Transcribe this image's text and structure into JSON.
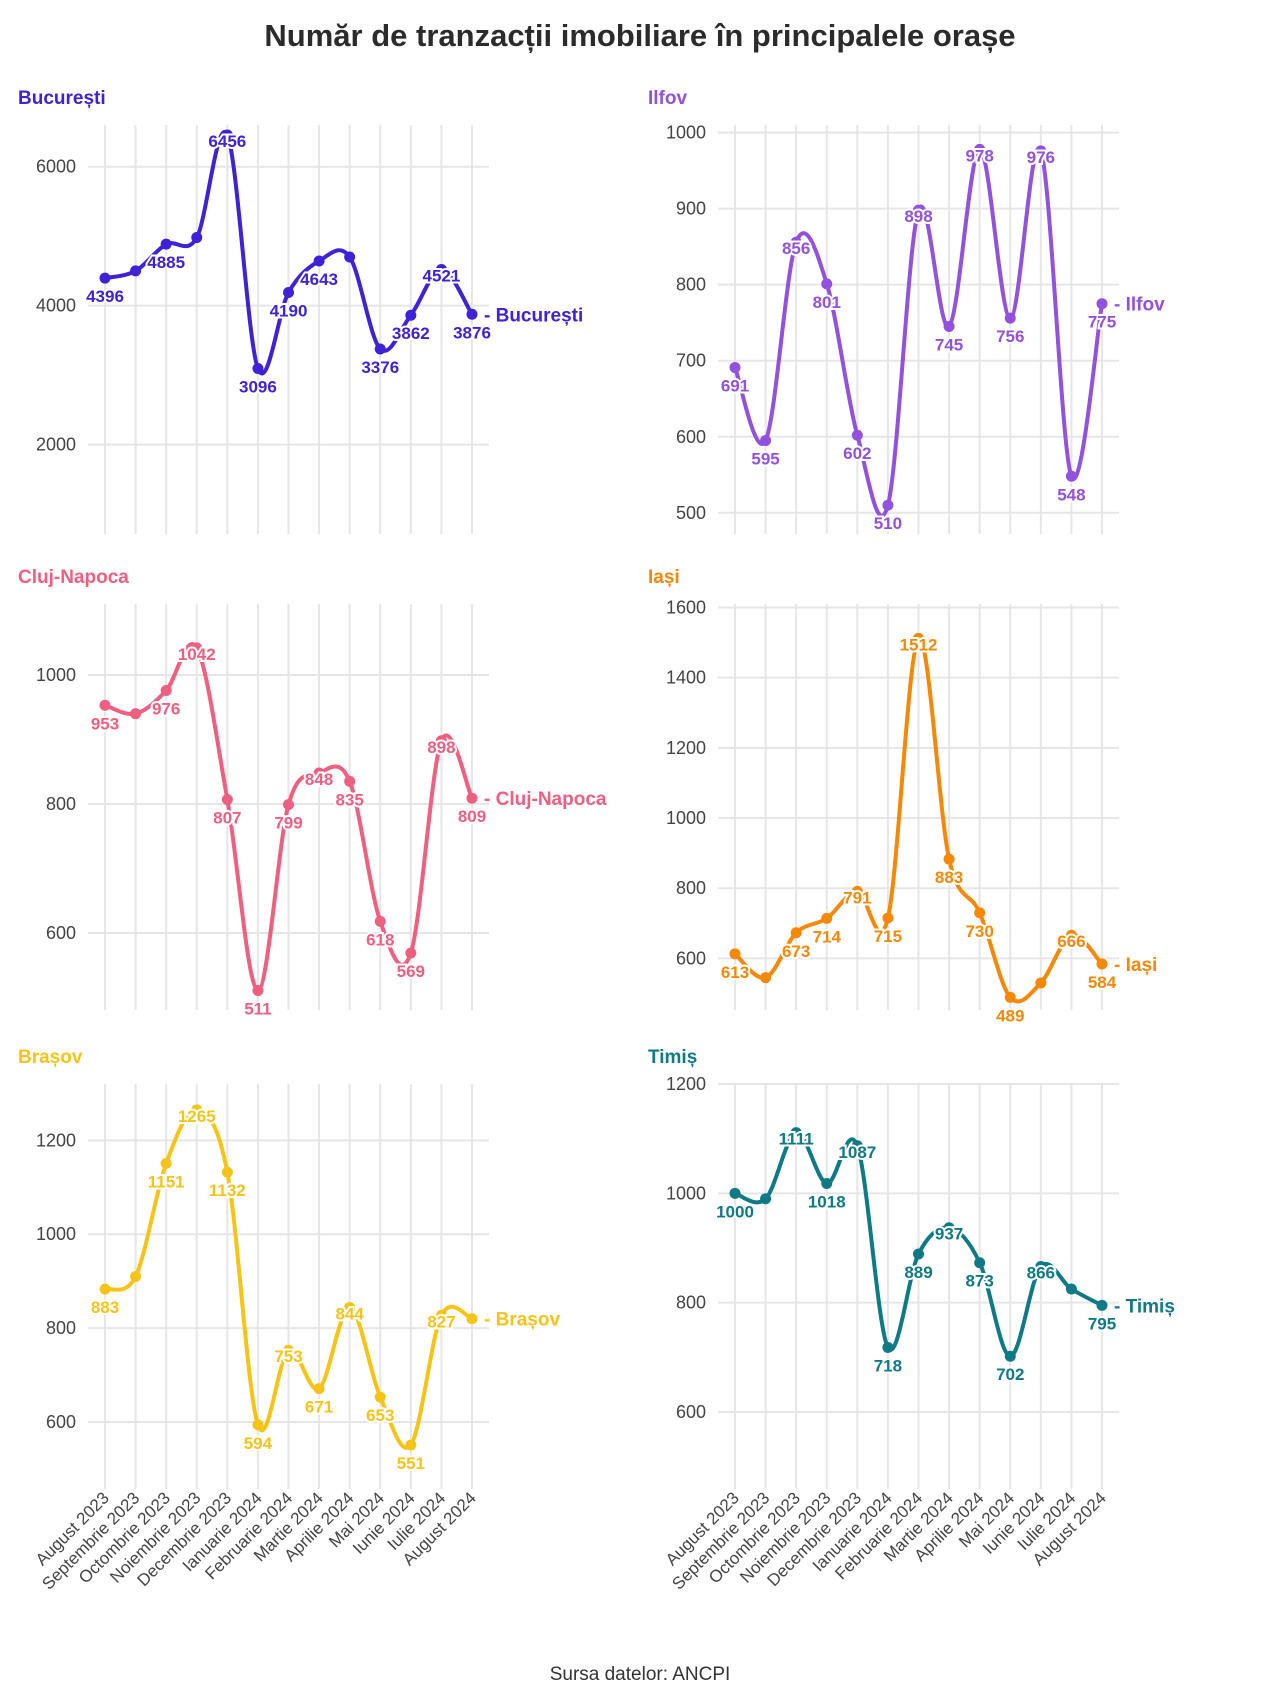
{
  "title": "Număr de tranzacții imobiliare în principalele orașe",
  "source": "Sursa datelor: ANCPI",
  "categories": [
    "August 2023",
    "Septembrie 2023",
    "Octombrie 2023",
    "Noiembrie 2023",
    "Decembrie 2023",
    "Ianuarie 2024",
    "Februarie 2024",
    "Martie 2024",
    "Aprilie 2024",
    "Mai 2024",
    "Iunie 2024",
    "Iulie 2024",
    "August 2024"
  ],
  "chart_data": [
    {
      "type": "line",
      "title": "București",
      "color": "#3f22d8",
      "series": [
        {
          "name": "București",
          "values": [
            4396,
            4500,
            4885,
            4980,
            6456,
            3096,
            4190,
            4643,
            4700,
            3376,
            3862,
            4521,
            3876
          ]
        }
      ],
      "data_labels": [
        "4396",
        "",
        "4885",
        "",
        "6456",
        "3096",
        "4190",
        "4643",
        "",
        "3376",
        "3862",
        "4521",
        "3876"
      ],
      "yticks": [
        2000,
        4000,
        6000
      ],
      "ylim": [
        800,
        6600
      ],
      "show_xticks": false
    },
    {
      "type": "line",
      "title": "Ilfov",
      "color": "#9351df",
      "series": [
        {
          "name": "Ilfov",
          "values": [
            691,
            595,
            856,
            801,
            602,
            510,
            898,
            745,
            978,
            756,
            976,
            548,
            775
          ]
        }
      ],
      "data_labels": [
        "691",
        "595",
        "856",
        "801",
        "602",
        "510",
        "898",
        "745",
        "978",
        "756",
        "976",
        "548",
        "775"
      ],
      "yticks": [
        500,
        600,
        700,
        800,
        900,
        1000
      ],
      "ylim": [
        480,
        1010
      ],
      "show_xticks": false
    },
    {
      "type": "line",
      "title": "Cluj-Napoca",
      "color": "#ef5f80",
      "series": [
        {
          "name": "Cluj-Napoca",
          "values": [
            953,
            940,
            976,
            1042,
            807,
            511,
            799,
            848,
            835,
            618,
            569,
            898,
            809
          ]
        }
      ],
      "data_labels": [
        "953",
        "",
        "976",
        "1042",
        "807",
        "511",
        "799",
        "848",
        "835",
        "618",
        "569",
        "898",
        "809"
      ],
      "yticks": [
        600,
        800,
        1000
      ],
      "ylim": [
        490,
        1110
      ],
      "show_xticks": false
    },
    {
      "type": "line",
      "title": "Iași",
      "color": "#f58807",
      "series": [
        {
          "name": "Iași",
          "values": [
            613,
            545,
            673,
            714,
            791,
            715,
            1512,
            883,
            730,
            489,
            530,
            666,
            584
          ]
        }
      ],
      "data_labels": [
        "613",
        "",
        "673",
        "714",
        "791",
        "715",
        "1512",
        "883",
        "730",
        "489",
        "",
        "666",
        "584"
      ],
      "yticks": [
        600,
        800,
        1000,
        1200,
        1400,
        1600
      ],
      "ylim": [
        470,
        1610
      ],
      "show_xticks": false
    },
    {
      "type": "line",
      "title": "Brașov",
      "color": "#f6c416",
      "series": [
        {
          "name": "Brașov",
          "values": [
            883,
            910,
            1151,
            1265,
            1132,
            594,
            753,
            671,
            844,
            653,
            551,
            827,
            820
          ]
        }
      ],
      "data_labels": [
        "883",
        "",
        "1151",
        "1265",
        "1132",
        "594",
        "753",
        "671",
        "844",
        "653",
        "551",
        "827",
        ""
      ],
      "yticks": [
        600,
        800,
        1000,
        1200
      ],
      "ylim": [
        470,
        1320
      ],
      "show_xticks": true
    },
    {
      "type": "line",
      "title": "Timiș",
      "color": "#0e7a86",
      "series": [
        {
          "name": "Timiș",
          "values": [
            1000,
            990,
            1111,
            1018,
            1087,
            718,
            889,
            937,
            873,
            702,
            866,
            825,
            795
          ]
        }
      ],
      "data_labels": [
        "1000",
        "",
        "1111",
        "1018",
        "1087",
        "718",
        "889",
        "937",
        "873",
        "702",
        "866",
        "",
        "795"
      ],
      "yticks": [
        600,
        800,
        1000,
        1200
      ],
      "ylim": [
        470,
        1200
      ],
      "show_xticks": true
    }
  ]
}
